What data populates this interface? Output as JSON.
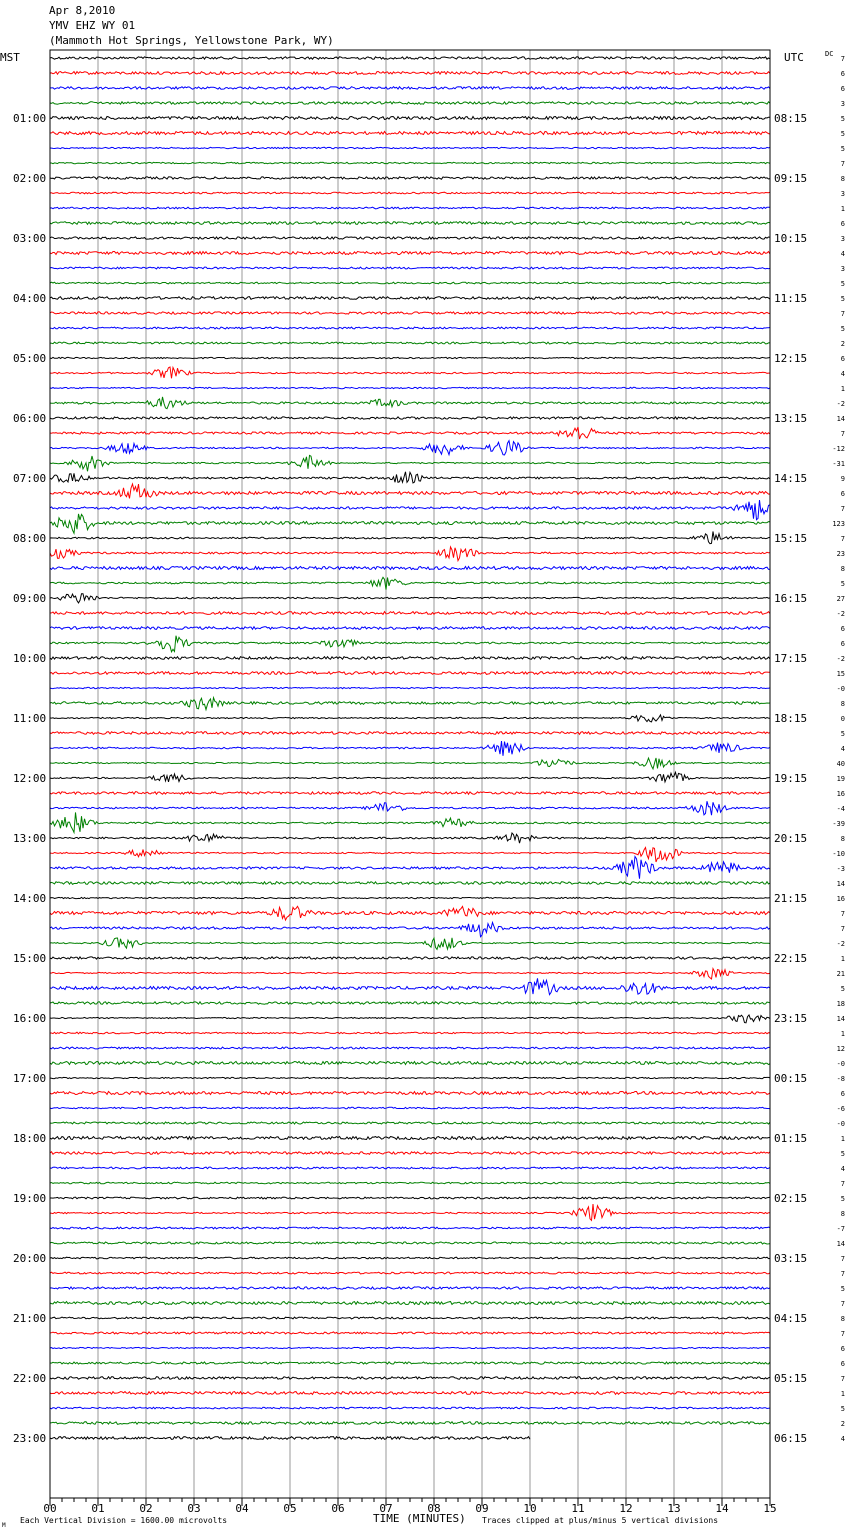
{
  "header": {
    "date": "Apr 8,2010",
    "station": "YMV EHZ WY 01",
    "location": "(Mammoth Hot Springs, Yellowstone Park, WY)"
  },
  "chart_data": {
    "type": "line",
    "left_axis_label": "MST",
    "right_axis_label": "UTC",
    "dc_label": "DC",
    "xlabel": "TIME (MINUTES)",
    "x_ticks": [
      "00",
      "01",
      "02",
      "03",
      "04",
      "05",
      "06",
      "07",
      "08",
      "09",
      "10",
      "11",
      "12",
      "13",
      "14",
      "15"
    ],
    "xlim": [
      0,
      15
    ],
    "left_hours": [
      "01:00",
      "02:00",
      "03:00",
      "04:00",
      "05:00",
      "06:00",
      "07:00",
      "08:00",
      "09:00",
      "10:00",
      "11:00",
      "12:00",
      "13:00",
      "14:00",
      "15:00",
      "16:00",
      "17:00",
      "18:00",
      "19:00",
      "20:00",
      "21:00",
      "22:00",
      "23:00"
    ],
    "right_hours": [
      "08:15",
      "09:15",
      "10:15",
      "11:15",
      "12:15",
      "13:15",
      "14:15",
      "15:15",
      "16:15",
      "17:15",
      "18:15",
      "19:15",
      "20:15",
      "21:15",
      "22:15",
      "23:15",
      "00:15",
      "01:15",
      "02:15",
      "03:15",
      "04:15",
      "05:15",
      "06:15"
    ],
    "dc_values": [
      "7",
      "6",
      "6",
      "3",
      "5",
      "5",
      "5",
      "7",
      "8",
      "3",
      "1",
      "6",
      "3",
      "4",
      "3",
      "5",
      "5",
      "7",
      "5",
      "2",
      "6",
      "4",
      "1",
      "-2",
      "14",
      "7",
      "-12",
      "-31",
      "9",
      "6",
      "7",
      "123",
      "7",
      "23",
      "8",
      "5",
      "27",
      "-2",
      "6",
      "6",
      "-2",
      "15",
      "-0",
      "8",
      "0",
      "5",
      "4",
      "40",
      "19",
      "16",
      "-4",
      "-39",
      "8",
      "-10",
      "-3",
      "14",
      "16",
      "7",
      "7",
      "-2",
      "1",
      "21",
      "5",
      "18",
      "14",
      "1",
      "12",
      "-0",
      "-8",
      "6",
      "-6",
      "-0",
      "1",
      "5",
      "4",
      "7",
      "5",
      "8",
      "-7",
      "14",
      "7",
      "7",
      "5",
      "7",
      "8",
      "7",
      "6",
      "6",
      "7",
      "1",
      "5",
      "2",
      "4"
    ],
    "trace_colors": [
      "#000000",
      "#ff0000",
      "#0000ff",
      "#008000"
    ],
    "trace_count": 93,
    "last_trace_end_minute": 10,
    "footer_left": "Each Vertical Division = 1600.00 microvolts",
    "footer_right": "Traces clipped at plus/minus 5 vertical divisions",
    "footer_mark": "M"
  }
}
